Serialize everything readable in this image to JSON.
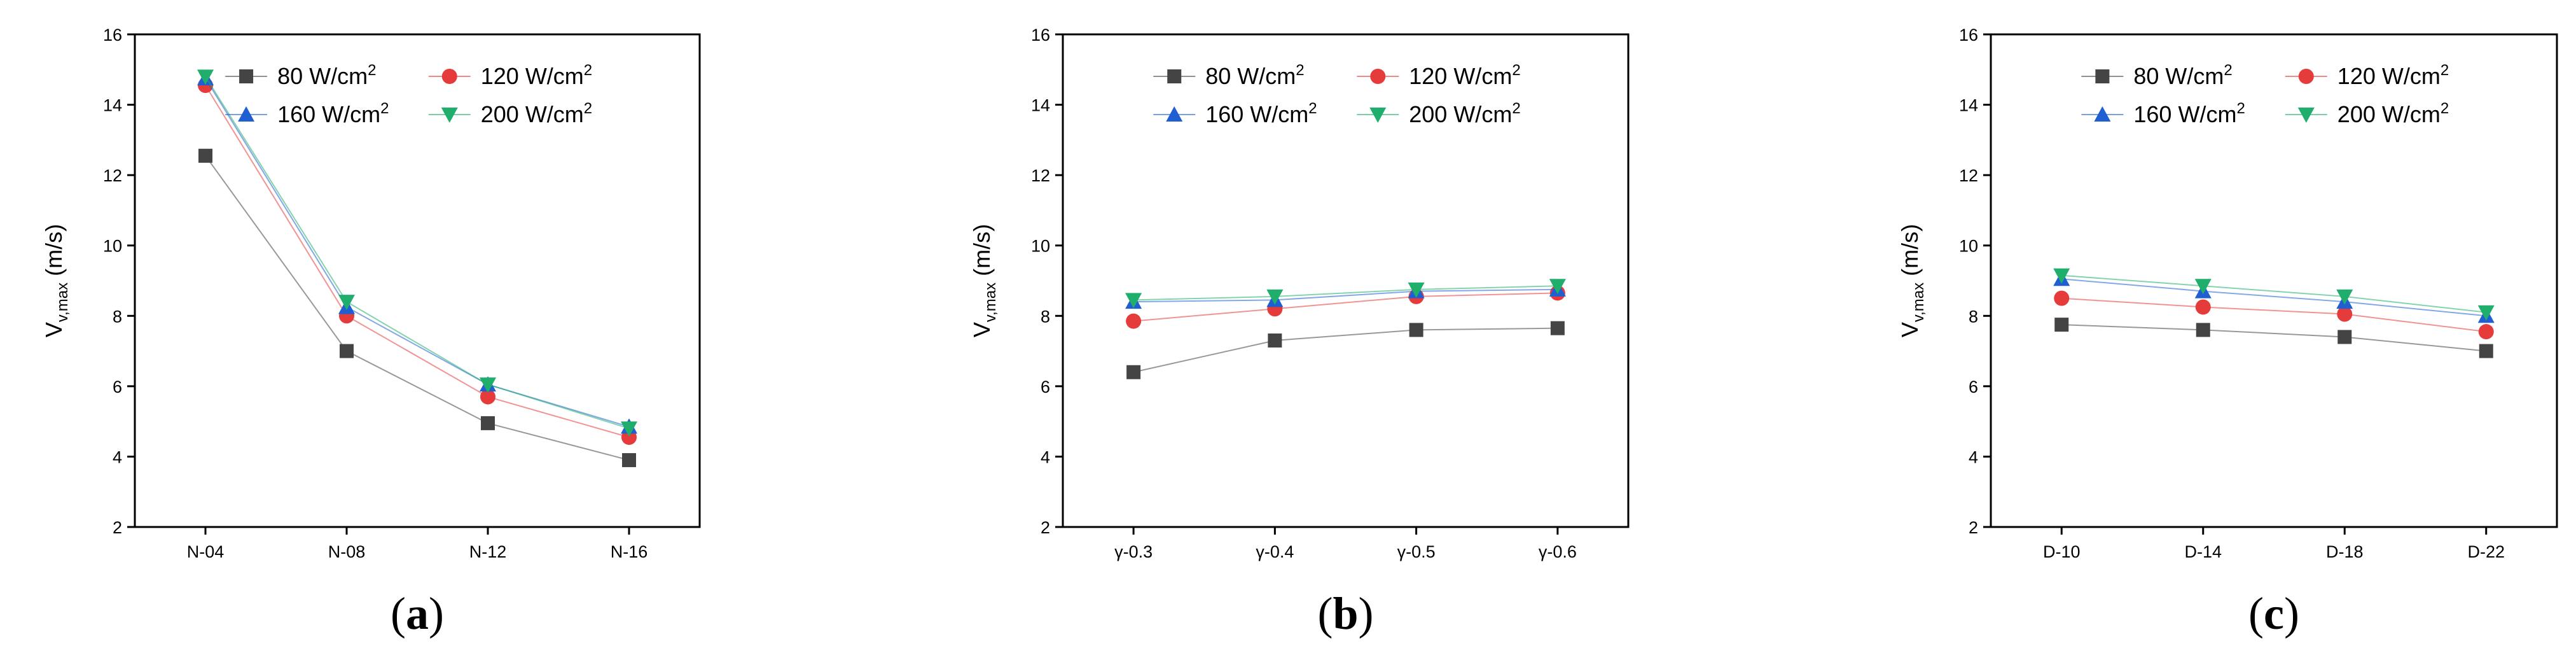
{
  "colors": {
    "s80": "#444444",
    "s120": "#e63b3b",
    "s160": "#1f5fd1",
    "s200": "#1fae6b"
  },
  "legend": [
    {
      "name": "80 W/cm",
      "sup": "2",
      "marker": "square",
      "color_key": "s80"
    },
    {
      "name": "120 W/cm",
      "sup": "2",
      "marker": "circle",
      "color_key": "s120"
    },
    {
      "name": "160 W/cm",
      "sup": "2",
      "marker": "triangle-up",
      "color_key": "s160"
    },
    {
      "name": "200 W/cm",
      "sup": "2",
      "marker": "triangle-down",
      "color_key": "s200"
    }
  ],
  "chart_data": [
    {
      "type": "line",
      "panel_label": "a",
      "categories": [
        "N-04",
        "N-08",
        "N-12",
        "N-16"
      ],
      "ylabel_main": "V",
      "ylabel_sub": "v,max",
      "ylabel_unit": " (m/s)",
      "ylim": [
        2,
        16
      ],
      "yticks": [
        2,
        4,
        6,
        8,
        10,
        12,
        14,
        16
      ],
      "legend_position": "top-right",
      "series": [
        {
          "name": "80 W/cm2",
          "values": [
            12.55,
            7.0,
            4.95,
            3.9
          ]
        },
        {
          "name": "120 W/cm2",
          "values": [
            14.55,
            8.0,
            5.7,
            4.55
          ]
        },
        {
          "name": "160 W/cm2",
          "values": [
            14.75,
            8.25,
            6.05,
            4.85
          ]
        },
        {
          "name": "200 W/cm2",
          "values": [
            14.8,
            8.4,
            6.05,
            4.8
          ]
        }
      ]
    },
    {
      "type": "line",
      "panel_label": "b",
      "categories": [
        "γ-0.3",
        "γ-0.4",
        "γ-0.5",
        "γ-0.6"
      ],
      "ylabel_main": "V",
      "ylabel_sub": "v,max",
      "ylabel_unit": " (m/s)",
      "ylim": [
        2,
        16
      ],
      "yticks": [
        2,
        4,
        6,
        8,
        10,
        12,
        14,
        16
      ],
      "legend_position": "top-right",
      "series": [
        {
          "name": "80 W/cm2",
          "values": [
            6.4,
            7.3,
            7.6,
            7.65
          ]
        },
        {
          "name": "120 W/cm2",
          "values": [
            7.85,
            8.2,
            8.55,
            8.65
          ]
        },
        {
          "name": "160 W/cm2",
          "values": [
            8.4,
            8.45,
            8.7,
            8.75
          ]
        },
        {
          "name": "200 W/cm2",
          "values": [
            8.45,
            8.55,
            8.75,
            8.85
          ]
        }
      ]
    },
    {
      "type": "line",
      "panel_label": "c",
      "categories": [
        "D-10",
        "D-14",
        "D-18",
        "D-22"
      ],
      "ylabel_main": "V",
      "ylabel_sub": "v,max",
      "ylabel_unit": " (m/s)",
      "ylim": [
        2,
        16
      ],
      "yticks": [
        2,
        4,
        6,
        8,
        10,
        12,
        14,
        16
      ],
      "legend_position": "top-right",
      "series": [
        {
          "name": "80 W/cm2",
          "values": [
            7.75,
            7.6,
            7.4,
            7.0
          ]
        },
        {
          "name": "120 W/cm2",
          "values": [
            8.5,
            8.25,
            8.05,
            7.55
          ]
        },
        {
          "name": "160 W/cm2",
          "values": [
            9.05,
            8.7,
            8.4,
            8.0
          ]
        },
        {
          "name": "200 W/cm2",
          "values": [
            9.15,
            8.85,
            8.55,
            8.1
          ]
        }
      ]
    }
  ]
}
